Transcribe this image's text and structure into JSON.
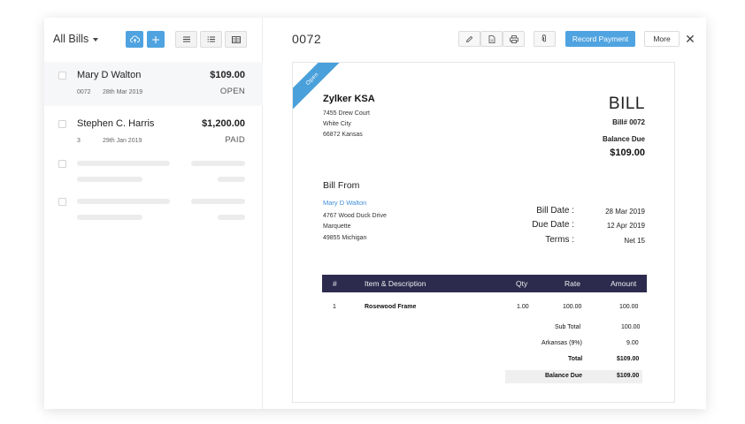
{
  "list": {
    "filter_label": "All Bills",
    "bills": [
      {
        "vendor": "Mary D Walton",
        "amount": "$109.00",
        "number": "0072",
        "date": "28th Mar 2019",
        "status": "OPEN"
      },
      {
        "vendor": "Stephen C. Harris",
        "amount": "$1,200.00",
        "number": "3",
        "date": "29th Jan 2019",
        "status": "PAID"
      }
    ]
  },
  "header": {
    "bill_number": "0072",
    "record_payment": "Record Payment",
    "more": "More",
    "close": "✕"
  },
  "document": {
    "ribbon": "Open",
    "company": {
      "name": "Zylker KSA",
      "address": [
        "7455 Drew Court",
        "White City",
        "66872 Kansas"
      ]
    },
    "title": "BILL",
    "bill_no": "Bill# 0072",
    "balance_due_label": "Balance Due",
    "balance_due_value": "$109.00",
    "bill_from_label": "Bill From",
    "vendor": {
      "name": "Mary D Walton",
      "address": [
        "4767 Wood Duck Drive",
        "Marquette",
        "49855 Michigan"
      ]
    },
    "meta": [
      {
        "label": "Bill Date :",
        "value": "28 Mar 2019"
      },
      {
        "label": "Due Date :",
        "value": "12 Apr 2019"
      },
      {
        "label": "Terms :",
        "value": "Net 15"
      }
    ],
    "table": {
      "headers": [
        "#",
        "Item & Description",
        "Qty",
        "Rate",
        "Amount"
      ],
      "rows": [
        {
          "index": "1",
          "item": "Rosewood Frame",
          "qty": "1.00",
          "rate": "100.00",
          "amount": "100.00"
        }
      ]
    },
    "totals": [
      {
        "label": "Sub Total",
        "value": "100.00"
      },
      {
        "label": "Arkansas (9%)",
        "value": "9.00"
      },
      {
        "label": "Total",
        "value": "$109.00"
      },
      {
        "label": "Balance Due",
        "value": "$109.00"
      }
    ]
  },
  "colors": {
    "accent": "#4fa3e0",
    "table_header": "#2c2b4e",
    "link": "#3f8ed6"
  }
}
